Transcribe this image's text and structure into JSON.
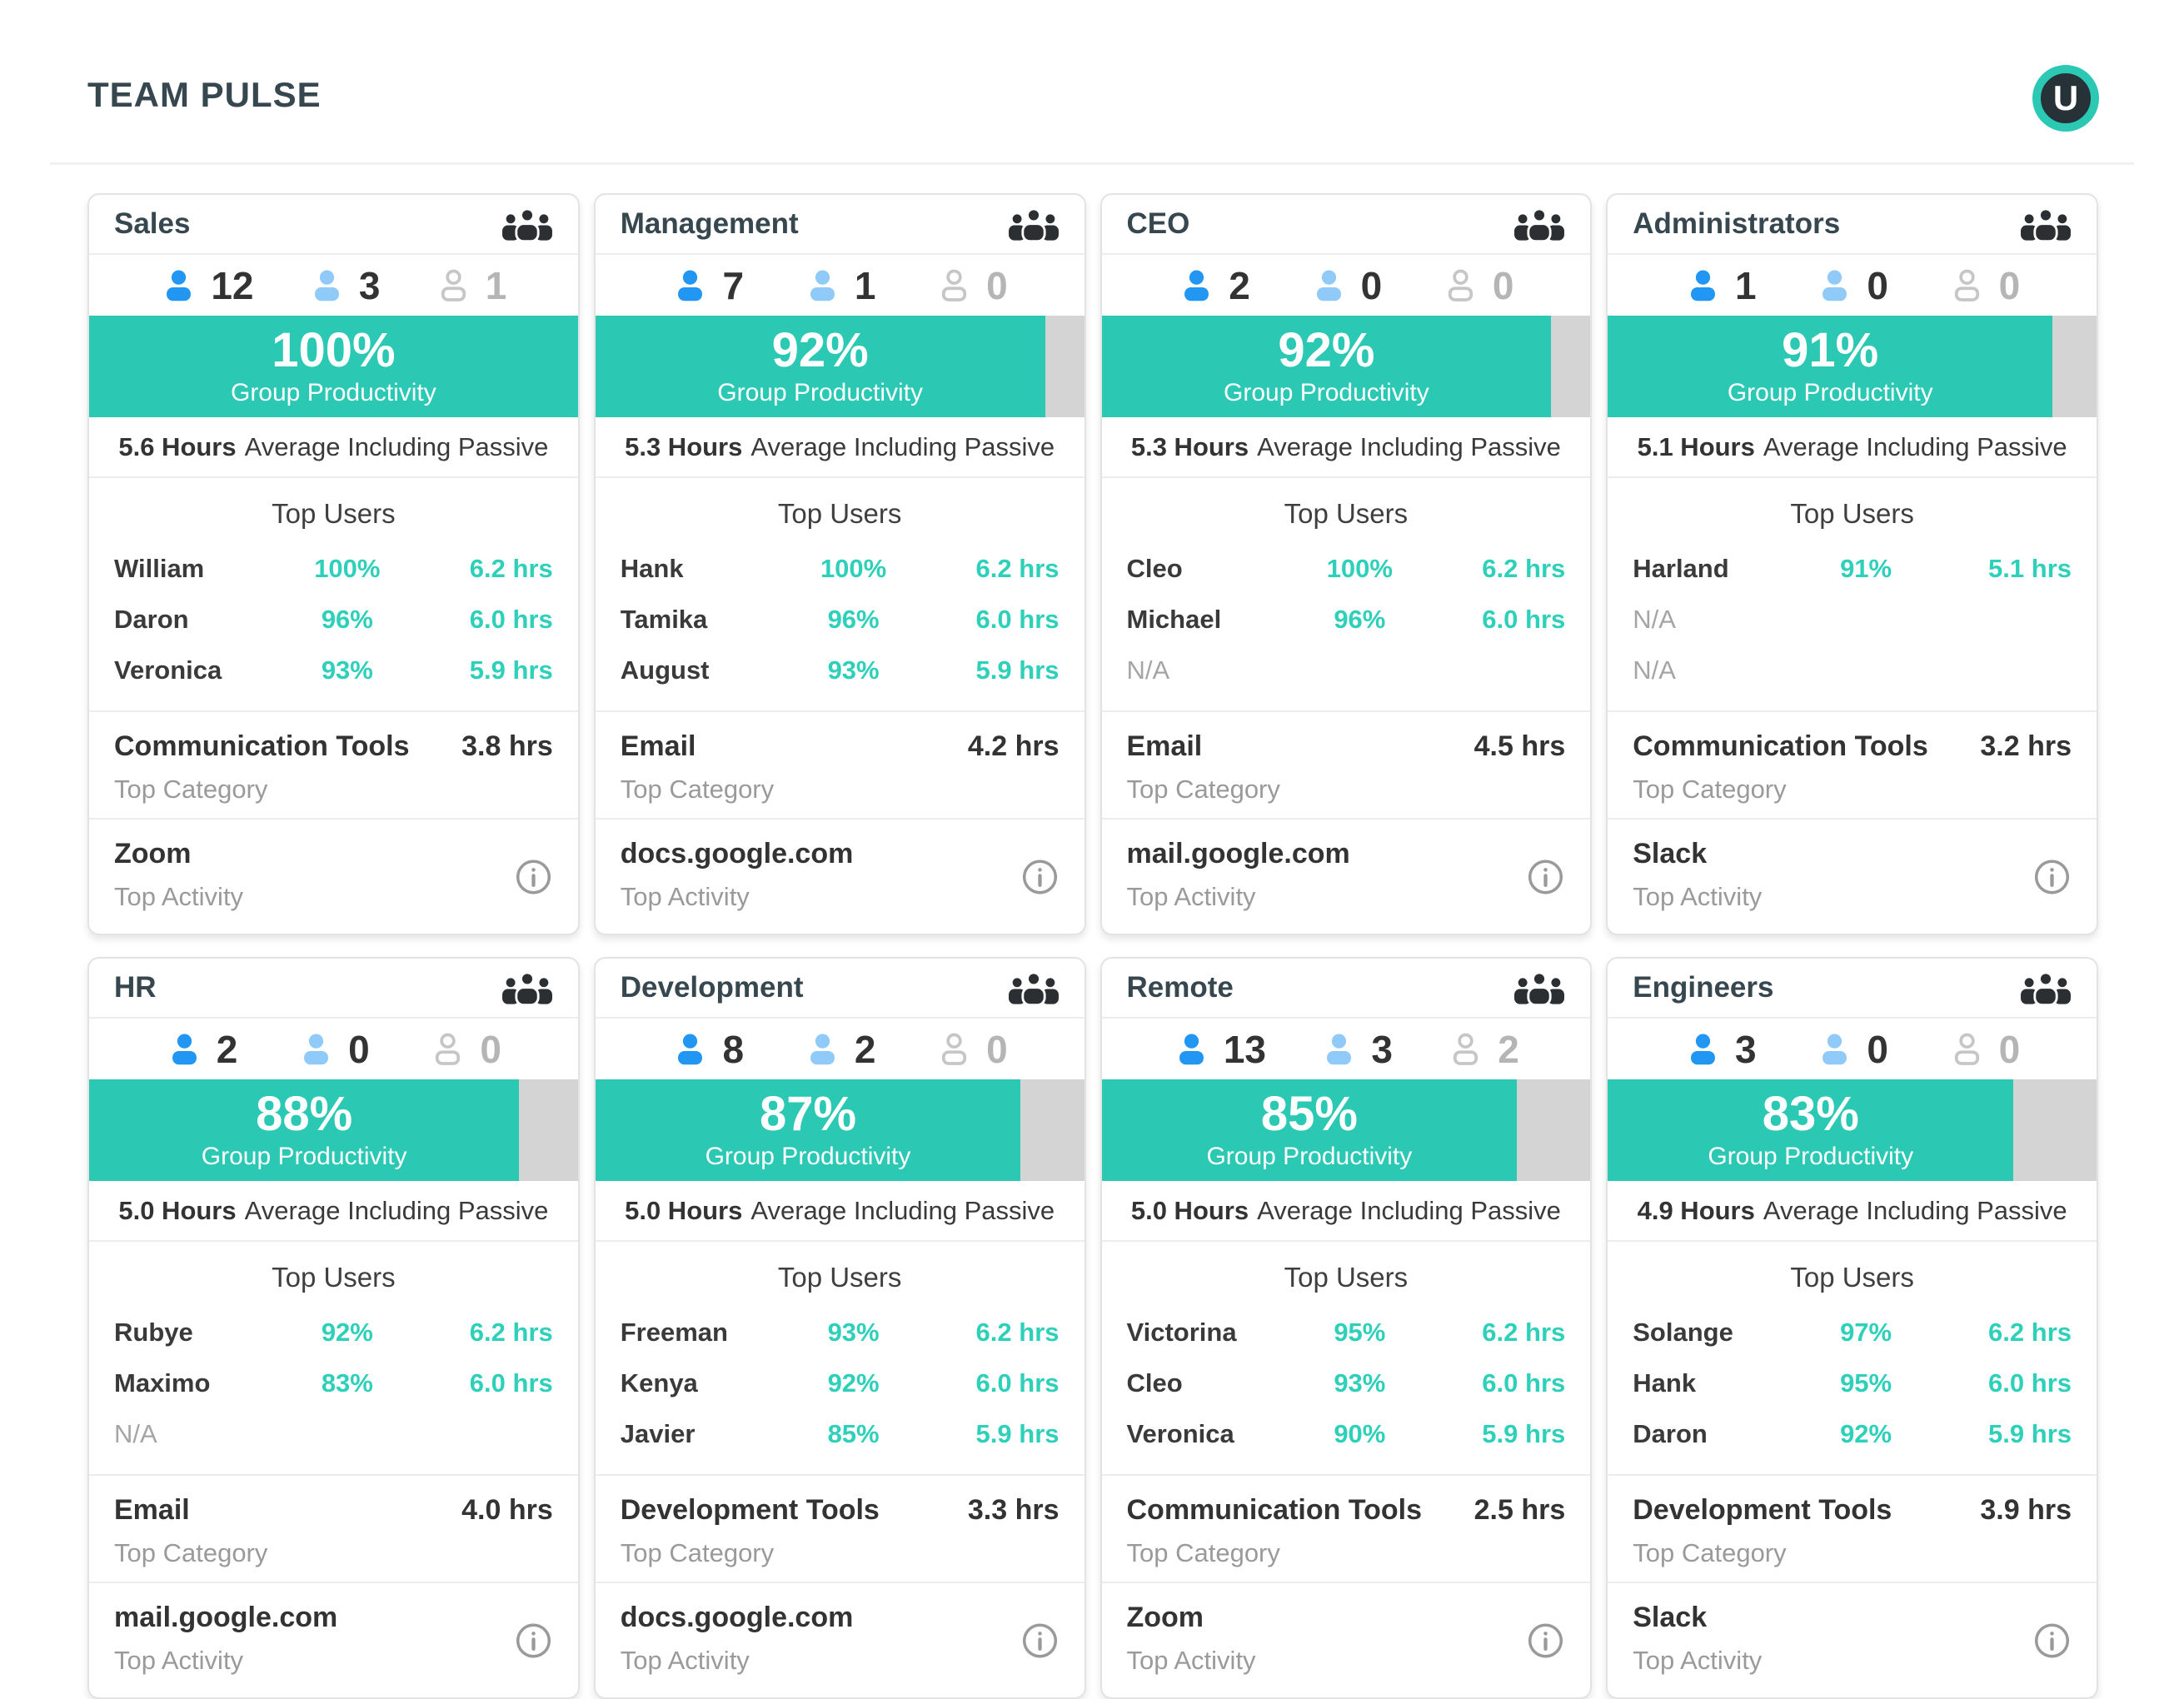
{
  "header": {
    "title": "TEAM PULSE",
    "avatar_initial": "U"
  },
  "labels": {
    "group_productivity": "Group Productivity",
    "average_suffix": "Average Including Passive",
    "top_users": "Top Users",
    "top_category": "Top Category",
    "top_activity": "Top Activity"
  },
  "icons": {
    "header_right": "groups-icon",
    "count_1": "active-user-icon",
    "count_2": "passive-user-icon",
    "count_3": "inactive-user-icon",
    "activity_right": "info-icon"
  },
  "colors": {
    "accent_teal": "#2BC9B4",
    "accent_teal_text": "#2ED0BA",
    "bar_remainder_gray": "#D4D4D4",
    "active_blue": "#2196F3",
    "passive_blue": "#90CAF9",
    "inactive_gray": "#C6C6C6",
    "dark_text": "#37474F",
    "muted_text": "#9A9A9A",
    "avatar_bg": "#263238"
  },
  "teams": [
    {
      "name": "Sales",
      "counts": {
        "active": "12",
        "passive": "3",
        "inactive": "1"
      },
      "productivity": "100%",
      "productivity_pct": 100,
      "hours": "5.6 Hours",
      "top_users": [
        {
          "name": "William",
          "pct": "100%",
          "hrs": "6.2 hrs"
        },
        {
          "name": "Daron",
          "pct": "96%",
          "hrs": "6.0 hrs"
        },
        {
          "name": "Veronica",
          "pct": "93%",
          "hrs": "5.9 hrs"
        }
      ],
      "top_category": {
        "name": "Communication Tools",
        "hrs": "3.8 hrs"
      },
      "top_activity": "Zoom"
    },
    {
      "name": "Management",
      "counts": {
        "active": "7",
        "passive": "1",
        "inactive": "0"
      },
      "productivity": "92%",
      "productivity_pct": 92,
      "hours": "5.3 Hours",
      "top_users": [
        {
          "name": "Hank",
          "pct": "100%",
          "hrs": "6.2 hrs"
        },
        {
          "name": "Tamika",
          "pct": "96%",
          "hrs": "6.0 hrs"
        },
        {
          "name": "August",
          "pct": "93%",
          "hrs": "5.9 hrs"
        }
      ],
      "top_category": {
        "name": "Email",
        "hrs": "4.2 hrs"
      },
      "top_activity": "docs.google.com"
    },
    {
      "name": "CEO",
      "counts": {
        "active": "2",
        "passive": "0",
        "inactive": "0"
      },
      "productivity": "92%",
      "productivity_pct": 92,
      "hours": "5.3 Hours",
      "top_users": [
        {
          "name": "Cleo",
          "pct": "100%",
          "hrs": "6.2 hrs"
        },
        {
          "name": "Michael",
          "pct": "96%",
          "hrs": "6.0 hrs"
        },
        {
          "name": "N/A",
          "pct": "",
          "hrs": "",
          "na": true
        }
      ],
      "top_category": {
        "name": "Email",
        "hrs": "4.5 hrs"
      },
      "top_activity": "mail.google.com"
    },
    {
      "name": "Administrators",
      "counts": {
        "active": "1",
        "passive": "0",
        "inactive": "0"
      },
      "productivity": "91%",
      "productivity_pct": 91,
      "hours": "5.1 Hours",
      "top_users": [
        {
          "name": "Harland",
          "pct": "91%",
          "hrs": "5.1 hrs"
        },
        {
          "name": "N/A",
          "pct": "",
          "hrs": "",
          "na": true
        },
        {
          "name": "N/A",
          "pct": "",
          "hrs": "",
          "na": true
        }
      ],
      "top_category": {
        "name": "Communication Tools",
        "hrs": "3.2 hrs"
      },
      "top_activity": "Slack"
    },
    {
      "name": "HR",
      "counts": {
        "active": "2",
        "passive": "0",
        "inactive": "0"
      },
      "productivity": "88%",
      "productivity_pct": 88,
      "hours": "5.0 Hours",
      "top_users": [
        {
          "name": "Rubye",
          "pct": "92%",
          "hrs": "6.2 hrs"
        },
        {
          "name": "Maximo",
          "pct": "83%",
          "hrs": "6.0 hrs"
        },
        {
          "name": "N/A",
          "pct": "",
          "hrs": "",
          "na": true
        }
      ],
      "top_category": {
        "name": "Email",
        "hrs": "4.0 hrs"
      },
      "top_activity": "mail.google.com"
    },
    {
      "name": "Development",
      "counts": {
        "active": "8",
        "passive": "2",
        "inactive": "0"
      },
      "productivity": "87%",
      "productivity_pct": 87,
      "hours": "5.0 Hours",
      "top_users": [
        {
          "name": "Freeman",
          "pct": "93%",
          "hrs": "6.2 hrs"
        },
        {
          "name": "Kenya",
          "pct": "92%",
          "hrs": "6.0 hrs"
        },
        {
          "name": "Javier",
          "pct": "85%",
          "hrs": "5.9 hrs"
        }
      ],
      "top_category": {
        "name": "Development Tools",
        "hrs": "3.3 hrs"
      },
      "top_activity": "docs.google.com"
    },
    {
      "name": "Remote",
      "counts": {
        "active": "13",
        "passive": "3",
        "inactive": "2"
      },
      "productivity": "85%",
      "productivity_pct": 85,
      "hours": "5.0 Hours",
      "top_users": [
        {
          "name": "Victorina",
          "pct": "95%",
          "hrs": "6.2 hrs"
        },
        {
          "name": "Cleo",
          "pct": "93%",
          "hrs": "6.0 hrs"
        },
        {
          "name": "Veronica",
          "pct": "90%",
          "hrs": "5.9 hrs"
        }
      ],
      "top_category": {
        "name": "Communication Tools",
        "hrs": "2.5 hrs"
      },
      "top_activity": "Zoom"
    },
    {
      "name": "Engineers",
      "counts": {
        "active": "3",
        "passive": "0",
        "inactive": "0"
      },
      "productivity": "83%",
      "productivity_pct": 83,
      "hours": "4.9 Hours",
      "top_users": [
        {
          "name": "Solange",
          "pct": "97%",
          "hrs": "6.2 hrs"
        },
        {
          "name": "Hank",
          "pct": "95%",
          "hrs": "6.0 hrs"
        },
        {
          "name": "Daron",
          "pct": "92%",
          "hrs": "5.9 hrs"
        }
      ],
      "top_category": {
        "name": "Development Tools",
        "hrs": "3.9 hrs"
      },
      "top_activity": "Slack"
    }
  ]
}
